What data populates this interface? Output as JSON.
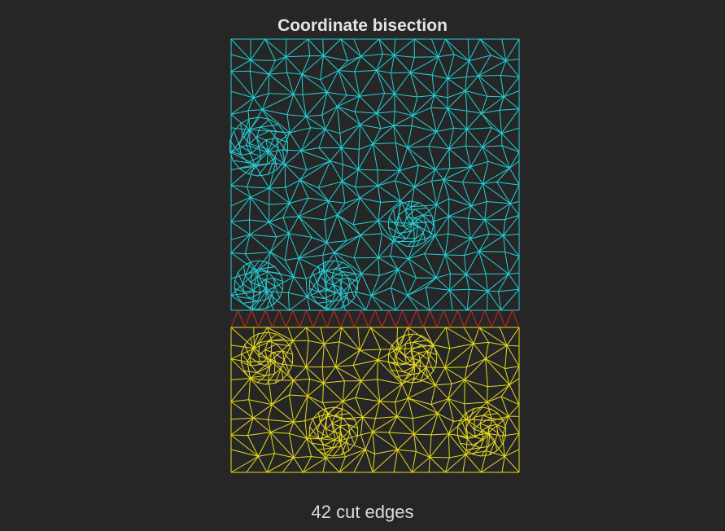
{
  "title": "Coordinate bisection",
  "caption": "42 cut edges",
  "colors": {
    "background": "#262626",
    "upper_partition": "#1fd3d8",
    "lower_partition": "#e6dc14",
    "cut_edges": "#d42a1e",
    "text": "#e4e4e4"
  }
}
